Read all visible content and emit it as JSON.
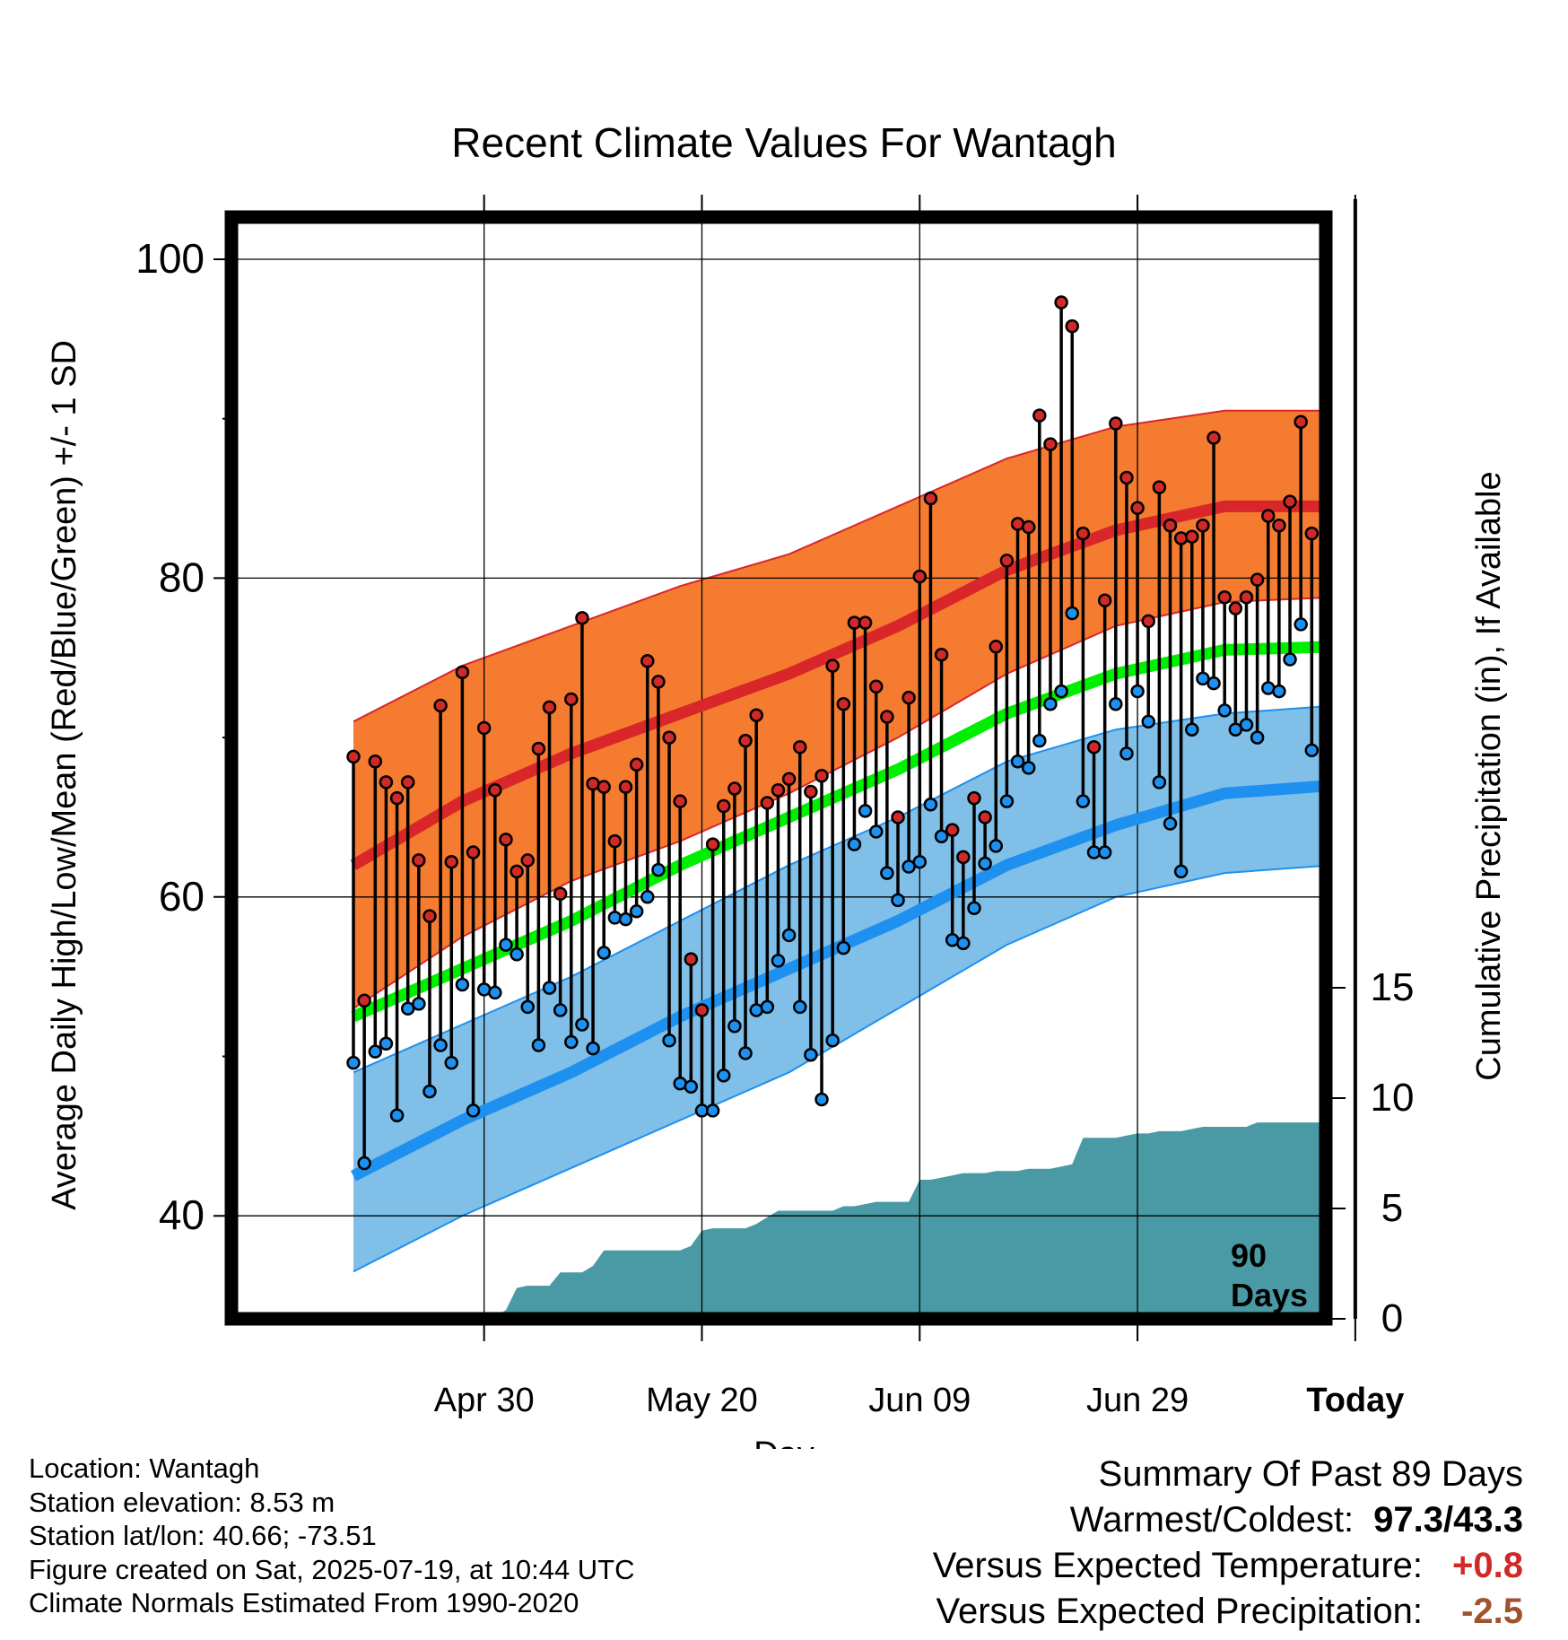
{
  "title": "Recent Climate Values For Wantagh",
  "chart_data": {
    "type": "line",
    "title": "Recent Climate Values For Wantagh",
    "xlabel": "Day",
    "ylabel": "Average Daily High/Low/Mean (Red/Blue/Green) +/- 1 SD",
    "y2label": "Cumulative Precipitation (in), If Available",
    "ylim": [
      34,
      103
    ],
    "y2lim": [
      0,
      40
    ],
    "yticks": [
      40,
      60,
      80,
      100
    ],
    "y2ticks": [
      0,
      5,
      10,
      15
    ],
    "xlim": [
      -90,
      9
    ],
    "x_unit": "days relative to today",
    "xtick_labels": [
      {
        "day": -78,
        "label": "Apr 30"
      },
      {
        "day": -58,
        "label": "May 20"
      },
      {
        "day": -38,
        "label": "Jun 09"
      },
      {
        "day": -18,
        "label": "Jun 29"
      },
      {
        "day": 2,
        "label": "Today"
      }
    ],
    "today_marker": {
      "day": 2,
      "label_line1": "90",
      "label_line2": "Days"
    },
    "grid": true,
    "colors": {
      "high_band": "#f47b2f",
      "high_mean": "#d9262a",
      "low_band": "#7fbfe8",
      "low_mean": "#1e90f0",
      "mean": "#00ee00",
      "precip": "#4a9aa5",
      "high_marker": "#cf2a27",
      "low_marker": "#1e90f0"
    },
    "normals": {
      "days": [
        -90,
        -80,
        -70,
        -60,
        -50,
        -40,
        -30,
        -20,
        -10,
        0,
        9
      ],
      "high_mean": [
        62,
        66,
        69,
        71.5,
        74,
        77,
        80.5,
        83,
        84.5,
        84.5,
        84.2
      ],
      "high_plus_sd": [
        71,
        74.5,
        77,
        79.5,
        81.5,
        84.5,
        87.5,
        89.5,
        90.5,
        90.5,
        90.2
      ],
      "high_minus_sd": [
        53,
        57.5,
        61,
        63.5,
        66.5,
        70,
        74,
        77,
        78.5,
        78.8,
        78.8
      ],
      "low_mean": [
        42.5,
        46,
        49,
        52.5,
        55.5,
        58.5,
        62,
        64.5,
        66.5,
        67,
        67
      ],
      "low_plus_sd": [
        49,
        52,
        55,
        58.5,
        62,
        65,
        68.5,
        70.5,
        71.5,
        72,
        72
      ],
      "low_minus_sd": [
        36.5,
        40,
        43,
        46,
        49,
        53,
        57,
        60,
        61.5,
        62,
        62
      ],
      "mean": [
        52.5,
        55.5,
        58.5,
        62,
        65,
        68,
        71.5,
        74,
        75.5,
        75.7,
        75.5
      ]
    },
    "series": [
      {
        "name": "Daily High",
        "values": [
          68.8,
          53.5,
          68.5,
          67.2,
          66.2,
          67.2,
          62.3,
          58.8,
          72,
          62.2,
          74.1,
          62.8,
          70.6,
          66.7,
          63.6,
          61.6,
          62.3,
          69.3,
          71.9,
          60.2,
          72.4,
          77.5,
          67.1,
          66.9,
          63.5,
          66.9,
          68.3,
          74.8,
          73.5,
          70,
          66,
          56.1,
          52.9,
          63.3,
          65.7,
          66.8,
          69.8,
          71.4,
          65.9,
          66.7,
          67.4,
          69.4,
          66.6,
          67.6,
          74.5,
          72.1,
          77.2,
          77.2,
          73.2,
          71.3,
          65,
          72.5,
          80.1,
          85,
          75.2,
          64.2,
          62.5,
          66.2,
          65,
          75.7,
          81.1,
          83.4,
          83.2,
          90.2,
          88.4,
          97.3,
          95.8,
          82.8,
          69.4,
          78.6,
          89.7,
          86.3,
          84.4,
          77.3,
          85.7,
          83.3,
          82.5,
          82.6,
          83.3,
          88.8,
          78.8,
          78.1,
          78.8,
          79.9,
          83.9,
          83.3,
          84.8,
          89.8,
          82.8
        ]
      },
      {
        "name": "Daily Low",
        "values": [
          49.6,
          43.3,
          50.3,
          50.8,
          46.3,
          53,
          53.3,
          47.8,
          50.7,
          49.6,
          54.5,
          46.6,
          54.2,
          54,
          57,
          56.4,
          53.1,
          50.7,
          54.3,
          52.9,
          50.9,
          52,
          50.5,
          56.5,
          58.7,
          58.6,
          59.1,
          60,
          61.7,
          51,
          48.3,
          48.1,
          46.6,
          46.6,
          48.8,
          51.9,
          50.2,
          52.9,
          53.1,
          56,
          57.6,
          53.1,
          50.1,
          47.3,
          51,
          56.8,
          63.3,
          65.4,
          64.1,
          61.5,
          59.8,
          61.9,
          62.2,
          65.8,
          63.8,
          57.3,
          57.1,
          59.3,
          62.1,
          63.2,
          66,
          68.5,
          68.1,
          69.8,
          72.1,
          72.9,
          77.8,
          66,
          62.8,
          62.8,
          72.1,
          69,
          72.9,
          71,
          67.2,
          64.6,
          61.6,
          70.5,
          73.7,
          73.4,
          71.7,
          70.5,
          70.8,
          70,
          73.1,
          72.9,
          74.9,
          77.1,
          69.2
        ]
      }
    ],
    "precipitation": {
      "days": [
        -90,
        -79,
        -78,
        -77,
        -76,
        -75,
        -74,
        -73,
        -72,
        -71,
        -70,
        -69,
        -68,
        -67,
        -66,
        -65,
        -64,
        -63,
        -62,
        -61,
        -60,
        -59,
        -58,
        -57,
        -56,
        -55,
        -54,
        -53,
        -52,
        -51,
        -50,
        -49,
        -48,
        -47,
        -46,
        -45,
        -44,
        -43,
        -42,
        -41,
        -40,
        -39,
        -38,
        -37,
        -36,
        -35,
        -34,
        -33,
        -32,
        -31,
        -30,
        -29,
        -28,
        -27,
        -26,
        -25,
        -24,
        -23,
        -22,
        -21,
        -20,
        -19,
        -18,
        -17,
        -16,
        -15,
        -14,
        -13,
        -12,
        -11,
        -10,
        -9,
        -8,
        -7,
        -6,
        -5,
        -4,
        -3,
        -2,
        -1,
        0,
        1,
        2,
        3,
        4,
        5,
        6,
        7,
        8,
        9
      ],
      "values": [
        0,
        0,
        0.05,
        0.1,
        0.4,
        1.4,
        1.5,
        1.5,
        1.5,
        2.1,
        2.1,
        2.1,
        2.4,
        3.1,
        3.1,
        3.1,
        3.1,
        3.1,
        3.1,
        3.1,
        3.1,
        3.3,
        4.0,
        4.1,
        4.1,
        4.1,
        4.1,
        4.3,
        4.6,
        4.9,
        4.9,
        4.9,
        4.9,
        4.9,
        4.9,
        5.1,
        5.1,
        5.2,
        5.3,
        5.3,
        5.3,
        5.3,
        6.3,
        6.3,
        6.4,
        6.5,
        6.6,
        6.6,
        6.6,
        6.7,
        6.7,
        6.7,
        6.8,
        6.8,
        6.8,
        6.9,
        7.0,
        8.2,
        8.2,
        8.2,
        8.2,
        8.3,
        8.4,
        8.4,
        8.5,
        8.5,
        8.5,
        8.6,
        8.7,
        8.7,
        8.7,
        8.7,
        8.7,
        8.9,
        8.9,
        8.9,
        8.9,
        8.9,
        8.9,
        8.9,
        8.9,
        8.9,
        8.9,
        8.9,
        8.9,
        8.9,
        8.9,
        8.9,
        8.9,
        8.9
      ]
    }
  },
  "info": {
    "location": "Location: Wantagh",
    "elevation": "Station elevation: 8.53 m",
    "latlon": "Station lat/lon: 40.66; -73.51",
    "created": "Figure created on Sat, 2025-07-19, at 10:44 UTC",
    "normals": "Climate Normals Estimated From 1990-2020"
  },
  "summary": {
    "title": "Summary Of Past 89 Days",
    "warm_cold_label": "Warmest/Coldest:",
    "warm_cold_value": "97.3/43.3",
    "temp_label": "Versus Expected Temperature:",
    "temp_value": "+0.8",
    "precip_label": "Versus Expected Precipitation:",
    "precip_value": "-2.5"
  }
}
